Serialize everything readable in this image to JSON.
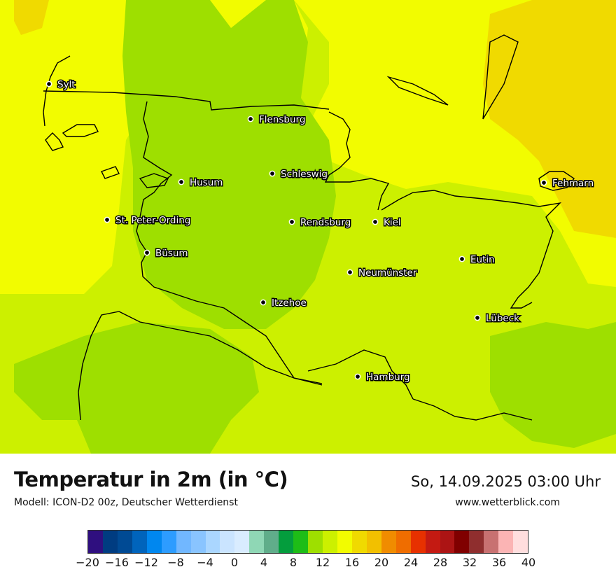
{
  "title": "Temperatur in 2m (in °C)",
  "model": "Modell: ICON-D2 00z, Deutscher Wetterdienst",
  "valid_time": "So, 14.09.2025 03:00 Uhr",
  "source": "www.wetterblick.com",
  "colors": {
    "t13": "#9edf00",
    "t15": "#ccf000",
    "t17": "#f2fc00",
    "t19": "#f0da00",
    "coast": "#000000",
    "city_dot": "#000000"
  },
  "cities": [
    {
      "name": "Sylt"
    },
    {
      "name": "Flensburg"
    },
    {
      "name": "Schleswig"
    },
    {
      "name": "Husum"
    },
    {
      "name": "Fehmarn"
    },
    {
      "name": "St. Peter-Ording"
    },
    {
      "name": "Rendsburg"
    },
    {
      "name": "Kiel"
    },
    {
      "name": "Büsum"
    },
    {
      "name": "Eutin"
    },
    {
      "name": "Neumünster"
    },
    {
      "name": "Itzehoe"
    },
    {
      "name": "Lübeck"
    },
    {
      "name": "Hamburg"
    }
  ],
  "legend": {
    "unit": "°C",
    "colors": [
      "#2f0f7f",
      "#003c81",
      "#004a94",
      "#0064bc",
      "#0087ef",
      "#2d9cff",
      "#71b7ff",
      "#89c4ff",
      "#aad6ff",
      "#cae4ff",
      "#d9ecff",
      "#8fd7b5",
      "#60ad8a",
      "#049d3d",
      "#1ebd17",
      "#9edf00",
      "#ccf000",
      "#f2fc00",
      "#f0da00",
      "#f2c000",
      "#f08c00",
      "#ef6d00",
      "#e73100",
      "#c41a12",
      "#ac1414",
      "#800000",
      "#8f2e2e",
      "#c87171",
      "#fbb4b4",
      "#ffdede"
    ],
    "ticks": [
      "−20",
      "−16",
      "−12",
      "−8",
      "−4",
      "0",
      "4",
      "8",
      "12",
      "16",
      "20",
      "24",
      "28",
      "32",
      "36",
      "40"
    ],
    "range": [
      -20,
      40
    ]
  }
}
